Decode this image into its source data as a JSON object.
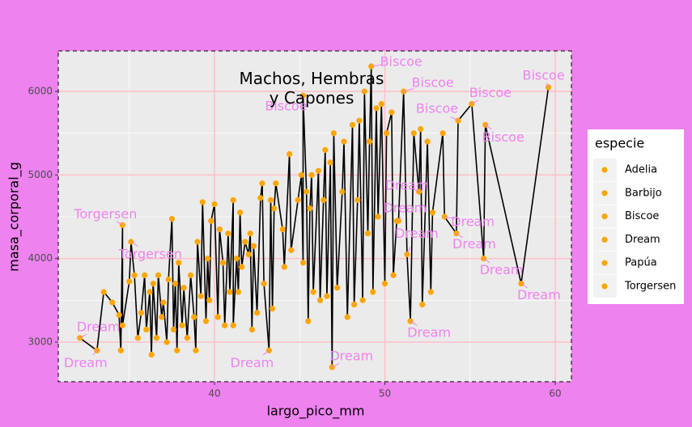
{
  "chart_data": {
    "type": "scatter-line",
    "title": "Machos, Hembras\ny Capones",
    "x_label": "largo_pico_mm",
    "y_label": "masa_corporal_g",
    "xlim": [
      30.83,
      60.95
    ],
    "ylim": [
      2526,
      6484
    ],
    "xticks": [
      40,
      50,
      60
    ],
    "yticks": [
      3000,
      4000,
      5000,
      6000
    ],
    "minor_xticks": [
      35,
      45,
      55
    ],
    "minor_yticks": [
      3500,
      4500,
      5500
    ],
    "grid": true,
    "grid_color": "#ffc0cb",
    "point_color": "#ffa500",
    "line_color": "#000000",
    "label_color": "#ee82ee",
    "legend": {
      "title": "especie",
      "position": "right",
      "entries": [
        "Adelia",
        "Barbijo",
        "Biscoe",
        "Dream",
        "Papúa",
        "Torgersen"
      ]
    },
    "x": [
      32.1,
      33.1,
      33.5,
      34.0,
      34.4,
      34.5,
      34.6,
      34.6,
      35.0,
      35.1,
      35.3,
      35.5,
      35.7,
      35.9,
      36.0,
      36.2,
      36.3,
      36.4,
      36.6,
      36.7,
      36.9,
      37.0,
      37.2,
      37.3,
      37.5,
      37.6,
      37.7,
      37.8,
      37.9,
      38.1,
      38.2,
      38.4,
      38.6,
      38.8,
      38.9,
      39.0,
      39.2,
      39.3,
      39.5,
      39.6,
      39.7,
      39.8,
      40.0,
      40.2,
      40.3,
      40.5,
      40.6,
      40.8,
      40.9,
      41.1,
      41.1,
      41.3,
      41.4,
      41.5,
      41.6,
      41.8,
      42.0,
      42.1,
      42.2,
      42.3,
      42.5,
      42.7,
      42.8,
      42.9,
      43.2,
      43.3,
      43.4,
      43.5,
      43.6,
      44.0,
      44.1,
      44.4,
      44.5,
      44.9,
      45.1,
      45.2,
      45.2,
      45.4,
      45.5,
      45.6,
      45.7,
      45.8,
      46.1,
      46.2,
      46.4,
      46.5,
      46.6,
      46.8,
      46.9,
      47.0,
      47.2,
      47.5,
      47.6,
      47.8,
      48.1,
      48.2,
      48.4,
      48.5,
      48.7,
      48.8,
      49.0,
      49.1,
      49.2,
      49.3,
      49.5,
      49.6,
      49.8,
      50.0,
      50.1,
      50.4,
      50.5,
      50.7,
      50.8,
      51.1,
      51.3,
      51.5,
      51.7,
      52.0,
      52.1,
      52.2,
      52.5,
      52.7,
      52.8,
      53.4,
      53.5,
      54.2,
      54.3,
      55.1,
      55.8,
      55.9,
      58.0,
      59.6
    ],
    "y": [
      3050,
      2900,
      3600,
      3475,
      3325,
      2900,
      4400,
      3200,
      3725,
      4200,
      3800,
      3050,
      3350,
      3800,
      3150,
      3600,
      2850,
      3700,
      3050,
      3800,
      3300,
      3475,
      3000,
      3750,
      4475,
      3150,
      3700,
      2900,
      3950,
      3200,
      3650,
      3050,
      3800,
      3300,
      2900,
      4200,
      3550,
      4675,
      3250,
      4000,
      3500,
      4450,
      4650,
      3300,
      4350,
      3950,
      3200,
      4300,
      3600,
      4700,
      3200,
      4000,
      3600,
      4550,
      3900,
      4200,
      4050,
      4300,
      3150,
      4150,
      3350,
      4725,
      4900,
      3700,
      2900,
      4700,
      3400,
      4600,
      4900,
      4350,
      3900,
      5250,
      4100,
      4700,
      5000,
      3950,
      5950,
      4800,
      3250,
      4600,
      5000,
      3600,
      5050,
      3500,
      4700,
      5300,
      3550,
      5150,
      2700,
      5500,
      3650,
      4800,
      5400,
      3300,
      5600,
      3450,
      4700,
      5650,
      3500,
      6000,
      4300,
      5400,
      6300,
      3600,
      5800,
      4500,
      5850,
      3700,
      5500,
      5750,
      3800,
      4450,
      4450,
      6000,
      4050,
      3250,
      5500,
      4800,
      5550,
      3450,
      5400,
      3600,
      4550,
      5500,
      4500,
      4300,
      5650,
      5850,
      4000,
      5600,
      3700,
      6050
    ],
    "annotations": [
      {
        "text": "Biscoe",
        "x": 49.2,
        "y": 6300
      },
      {
        "text": "Biscoe",
        "x": 51.1,
        "y": 6000
      },
      {
        "text": "Biscoe",
        "x": 45.2,
        "y": 5950
      },
      {
        "text": "Biscoe",
        "x": 55.1,
        "y": 5850
      },
      {
        "text": "Biscoe",
        "x": 59.6,
        "y": 6050
      },
      {
        "text": "Biscoe",
        "x": 54.3,
        "y": 5650
      },
      {
        "text": "Biscoe",
        "x": 55.9,
        "y": 5600
      },
      {
        "text": "Dream",
        "x": 52.0,
        "y": 4800
      },
      {
        "text": "Dream",
        "x": 50.8,
        "y": 4450
      },
      {
        "text": "Dream",
        "x": 53.5,
        "y": 4500
      },
      {
        "text": "Dream",
        "x": 51.3,
        "y": 4050
      },
      {
        "text": "Dream",
        "x": 54.2,
        "y": 4300
      },
      {
        "text": "Dream",
        "x": 55.8,
        "y": 4000
      },
      {
        "text": "Dream",
        "x": 58.0,
        "y": 3700
      },
      {
        "text": "Dream",
        "x": 51.5,
        "y": 3250
      },
      {
        "text": "Dream",
        "x": 46.9,
        "y": 2700
      },
      {
        "text": "Dream",
        "x": 43.2,
        "y": 2900
      },
      {
        "text": "Dream",
        "x": 33.1,
        "y": 2900
      },
      {
        "text": "Dream",
        "x": 32.1,
        "y": 3050
      },
      {
        "text": "Torgersen",
        "x": 34.6,
        "y": 4400
      },
      {
        "text": "Torgersen",
        "x": 35.1,
        "y": 4200
      }
    ]
  }
}
